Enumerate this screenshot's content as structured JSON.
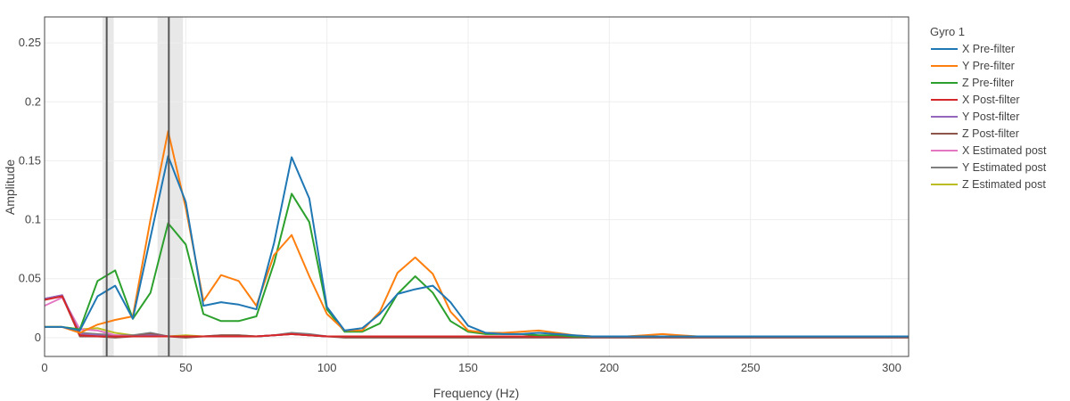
{
  "chart_data": {
    "type": "line",
    "xlabel": "Frequency (Hz)",
    "ylabel": "Amplitude",
    "xlim": [
      0,
      306
    ],
    "ylim": [
      -0.016,
      0.272
    ],
    "xticks": [
      0,
      50,
      100,
      150,
      200,
      250,
      300
    ],
    "xtick_labels": [
      "0",
      "50",
      "100",
      "150",
      "200",
      "250",
      "300"
    ],
    "yticks": [
      0,
      0.05,
      0.1,
      0.15,
      0.2,
      0.25
    ],
    "ytick_labels": [
      "0",
      "0.05",
      "0.1",
      "0.15",
      "0.2",
      "0.25"
    ],
    "grid": true,
    "legend": {
      "title": "Gyro 1",
      "placement": "right"
    },
    "shaded_bands": [
      {
        "x0": 20.5,
        "x1": 24.5,
        "color": "#e8e8e8"
      },
      {
        "x0": 40,
        "x1": 49,
        "color": "#e8e8e8"
      }
    ],
    "vertical_lines": [
      {
        "x": 22,
        "color": "#555555"
      },
      {
        "x": 44,
        "color": "#555555"
      }
    ],
    "x": [
      0,
      6.25,
      12.5,
      18.75,
      25,
      31.25,
      37.5,
      43.75,
      50,
      56.25,
      62.5,
      68.75,
      75,
      81.25,
      87.5,
      93.75,
      100,
      106.25,
      112.5,
      118.75,
      125,
      131.25,
      137.5,
      143.75,
      150,
      156.25,
      162.5,
      168.75,
      175,
      181.25,
      187.5,
      193.75,
      200,
      206.25,
      212.5,
      218.75,
      225,
      231.25,
      237.5,
      243.75,
      250,
      256.25,
      262.5,
      268.75,
      275,
      281.25,
      287.5,
      293.75,
      300,
      306
    ],
    "series": [
      {
        "name": "X Pre-filter",
        "color": "#1f77b4",
        "values": [
          0.009,
          0.009,
          0.006,
          0.035,
          0.044,
          0.016,
          0.085,
          0.154,
          0.115,
          0.027,
          0.03,
          0.028,
          0.024,
          0.08,
          0.153,
          0.118,
          0.026,
          0.006,
          0.008,
          0.02,
          0.037,
          0.041,
          0.044,
          0.03,
          0.01,
          0.004,
          0.003,
          0.003,
          0.004,
          0.003,
          0.002,
          0.001,
          0.001,
          0.001,
          0.001,
          0.001,
          0.001,
          0.001,
          0.001,
          0.001,
          0.001,
          0.001,
          0.001,
          0.001,
          0.001,
          0.001,
          0.001,
          0.001,
          0.001,
          0.001
        ]
      },
      {
        "name": "Y Pre-filter",
        "color": "#ff7f0e",
        "values": [
          0.009,
          0.009,
          0.004,
          0.011,
          0.015,
          0.018,
          0.1,
          0.175,
          0.11,
          0.031,
          0.053,
          0.048,
          0.027,
          0.07,
          0.087,
          0.052,
          0.02,
          0.006,
          0.006,
          0.022,
          0.055,
          0.068,
          0.054,
          0.022,
          0.006,
          0.004,
          0.004,
          0.005,
          0.006,
          0.004,
          0.002,
          0.001,
          0.001,
          0.001,
          0.002,
          0.003,
          0.002,
          0.001,
          0.001,
          0.001,
          0.001,
          0.001,
          0.001,
          0.001,
          0.001,
          0.001,
          0.001,
          0.001,
          0.001,
          0.001
        ]
      },
      {
        "name": "Z Pre-filter",
        "color": "#2ca02c",
        "values": [
          0.009,
          0.009,
          0.007,
          0.048,
          0.057,
          0.016,
          0.038,
          0.097,
          0.079,
          0.02,
          0.014,
          0.014,
          0.018,
          0.063,
          0.122,
          0.098,
          0.024,
          0.005,
          0.005,
          0.012,
          0.037,
          0.052,
          0.038,
          0.014,
          0.005,
          0.003,
          0.003,
          0.003,
          0.002,
          0.002,
          0.001,
          0.001,
          0.001,
          0.001,
          0.001,
          0.001,
          0.001,
          0.001,
          0.001,
          0.001,
          0.001,
          0.001,
          0.001,
          0.001,
          0.001,
          0.001,
          0.001,
          0.001,
          0.001,
          0.001
        ]
      },
      {
        "name": "X Post-filter",
        "color": "#d62728",
        "values": [
          0.032,
          0.035,
          0.002,
          0.001,
          0.001,
          0.001,
          0.001,
          0.001,
          0.001,
          0.001,
          0.001,
          0.001,
          0.001,
          0.002,
          0.003,
          0.002,
          0.001,
          0.001,
          0.001,
          0.001,
          0.001,
          0.001,
          0.001,
          0.001,
          0.001,
          0.001,
          0.001,
          0.001,
          0.001,
          0.001,
          0.001,
          0.001,
          0.001,
          0.001,
          0.001,
          0.001,
          0.001,
          0.001,
          0.001,
          0.001,
          0.001,
          0.001,
          0.001,
          0.001,
          0.001,
          0.001,
          0.001,
          0.001,
          0.001,
          0.001
        ]
      },
      {
        "name": "Y Post-filter",
        "color": "#9467bd",
        "values": [
          0.033,
          0.036,
          0.003,
          0.002,
          0.001,
          0.001,
          0.002,
          0.001,
          0.001,
          0.001,
          0.001,
          0.001,
          0.001,
          0.002,
          0.003,
          0.002,
          0.001,
          0.001,
          0.001,
          0.001,
          0.001,
          0.001,
          0.001,
          0.001,
          0.001,
          0.001,
          0.001,
          0.001,
          0.001,
          0.001,
          0.001,
          0.001,
          0.001,
          0.001,
          0.001,
          0.001,
          0.001,
          0.001,
          0.001,
          0.001,
          0.001,
          0.001,
          0.001,
          0.001,
          0.001,
          0.001,
          0.001,
          0.001,
          0.001,
          0.001
        ]
      },
      {
        "name": "Z Post-filter",
        "color": "#8c564b",
        "values": [
          0.033,
          0.035,
          0.001,
          0.001,
          0.0,
          0.001,
          0.003,
          0.001,
          0.0,
          0.001,
          0.002,
          0.002,
          0.001,
          0.002,
          0.003,
          0.002,
          0.001,
          0.0,
          0.0,
          0.0,
          0.0,
          0.0,
          0.0,
          0.0,
          0.0,
          0.0,
          0.0,
          0.0,
          0.0,
          0.0,
          0.0,
          0.0,
          0.0,
          0.0,
          0.0,
          0.0,
          0.0,
          0.0,
          0.0,
          0.0,
          0.0,
          0.0,
          0.0,
          0.0,
          0.0,
          0.0,
          0.0,
          0.0,
          0.0,
          0.0
        ]
      },
      {
        "name": "X Estimated post",
        "color": "#e377c2",
        "values": [
          0.027,
          0.034,
          0.007,
          0.006,
          0.002,
          0.001,
          0.002,
          0.001,
          0.001,
          0.001,
          0.001,
          0.001,
          0.001,
          0.002,
          0.003,
          0.002,
          0.001,
          0.001,
          0.001,
          0.001,
          0.001,
          0.001,
          0.001,
          0.001,
          0.001,
          0.001,
          0.001,
          0.001,
          0.001,
          0.001,
          0.001,
          0.001,
          0.001,
          0.001,
          0.001,
          0.001,
          0.001,
          0.001,
          0.001,
          0.001,
          0.001,
          0.001,
          0.001,
          0.001,
          0.001,
          0.001,
          0.001,
          0.001,
          0.001,
          0.001
        ]
      },
      {
        "name": "Y Estimated post",
        "color": "#7f7f7f",
        "values": [
          0.033,
          0.035,
          0.004,
          0.003,
          0.002,
          0.002,
          0.004,
          0.001,
          0.001,
          0.001,
          0.002,
          0.002,
          0.001,
          0.002,
          0.004,
          0.003,
          0.001,
          0.001,
          0.001,
          0.001,
          0.001,
          0.001,
          0.001,
          0.001,
          0.001,
          0.001,
          0.001,
          0.001,
          0.001,
          0.001,
          0.001,
          0.001,
          0.001,
          0.001,
          0.001,
          0.001,
          0.001,
          0.001,
          0.001,
          0.001,
          0.001,
          0.001,
          0.001,
          0.001,
          0.001,
          0.001,
          0.001,
          0.001,
          0.001,
          0.001
        ]
      },
      {
        "name": "Z Estimated post",
        "color": "#bcbd22",
        "values": [
          0.009,
          0.009,
          0.007,
          0.008,
          0.004,
          0.002,
          0.002,
          0.001,
          0.002,
          0.001,
          0.001,
          0.001,
          0.001,
          0.002,
          0.003,
          0.002,
          0.001,
          0.001,
          0.001,
          0.001,
          0.001,
          0.001,
          0.001,
          0.001,
          0.001,
          0.001,
          0.001,
          0.001,
          0.001,
          0.001,
          0.001,
          0.001,
          0.001,
          0.001,
          0.001,
          0.001,
          0.001,
          0.001,
          0.001,
          0.001,
          0.001,
          0.001,
          0.001,
          0.001,
          0.001,
          0.001,
          0.001,
          0.001,
          0.001,
          0.001
        ]
      }
    ]
  }
}
